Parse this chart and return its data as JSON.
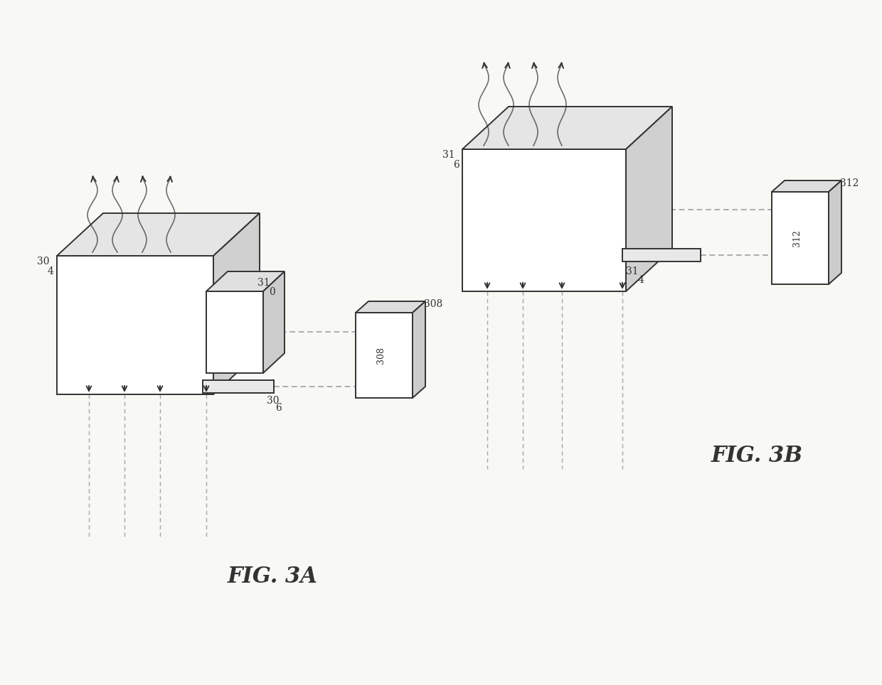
{
  "bg_color": "#f8f8f5",
  "lc": "#333333",
  "dc": "#999999",
  "lw": 1.4,
  "fig_label_a": "FIG. 3A",
  "fig_label_b": "FIG. 3B",
  "labels": {
    "30_a": "30",
    "4_a": "4",
    "31_a": "31",
    "0_a": "0",
    "308": "308",
    "30_6a": "30",
    "6_a": "6",
    "31_b_top": "31",
    "6_b": "6",
    "31_b_bot": "31",
    "4_b": "4",
    "312": "312"
  }
}
